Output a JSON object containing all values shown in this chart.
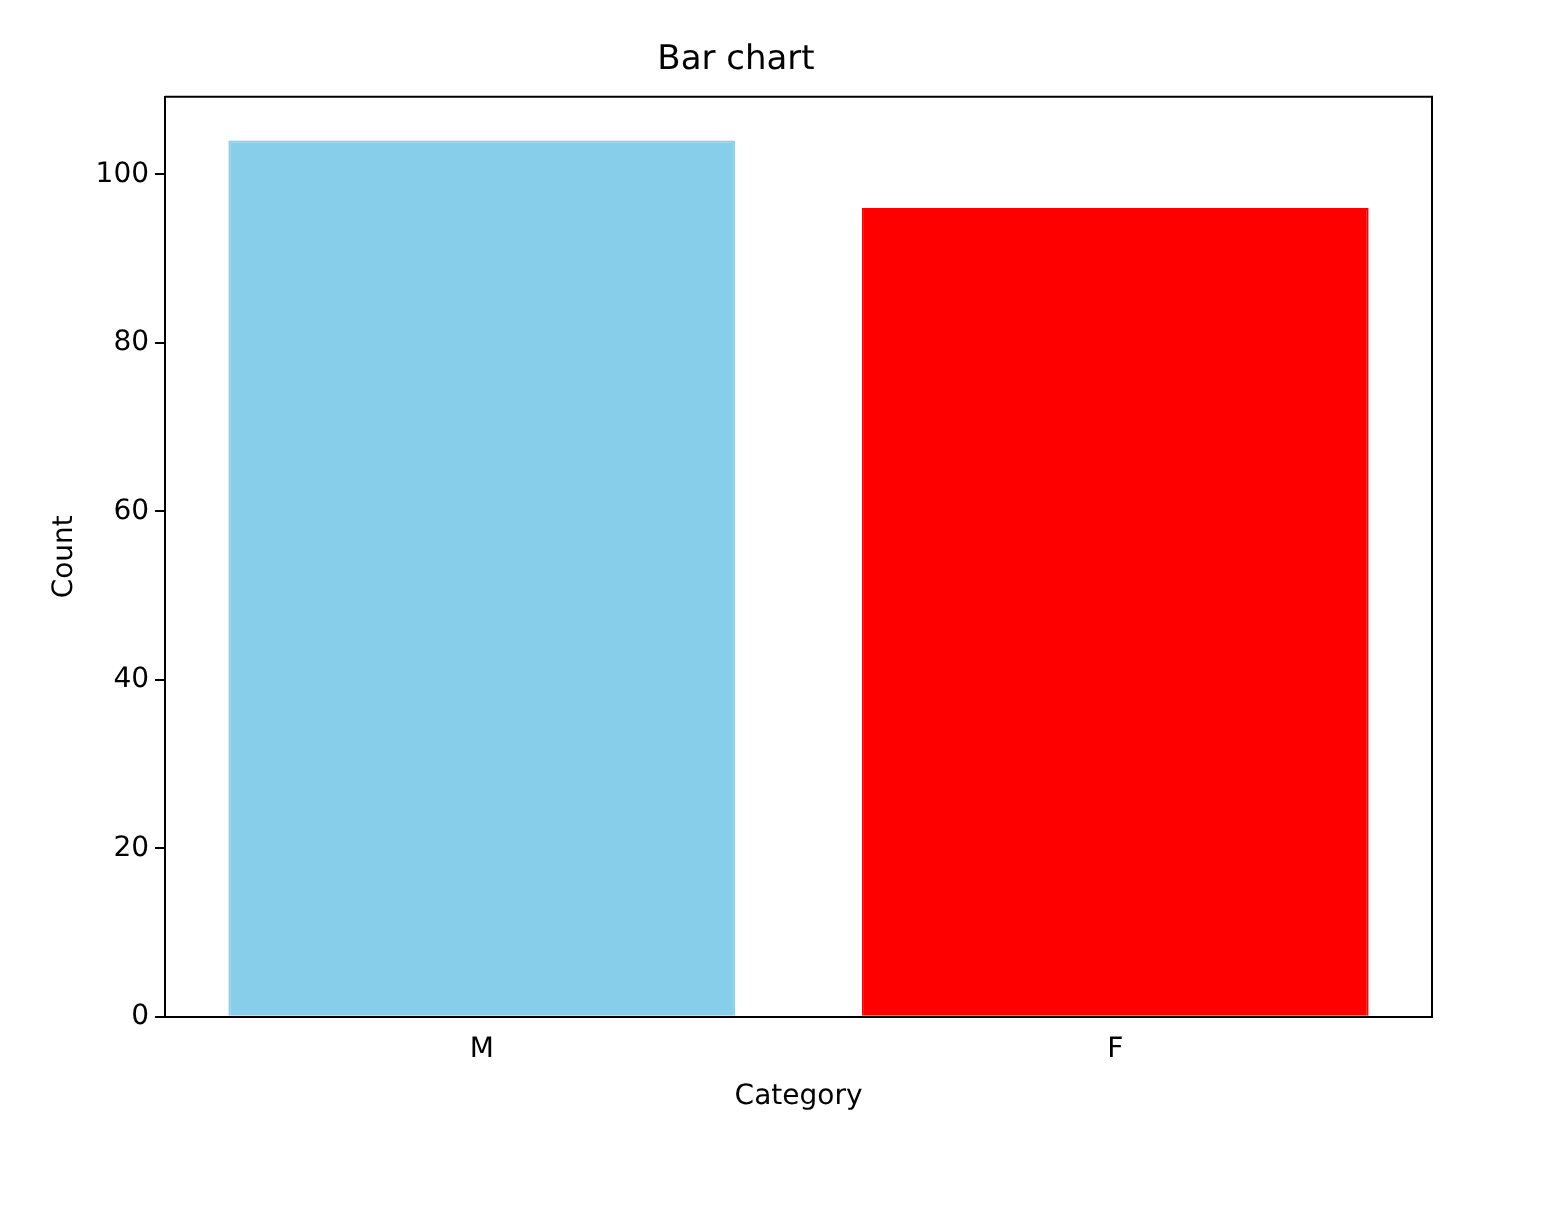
{
  "chart_data": {
    "type": "bar",
    "title": "Bar chart",
    "xlabel": "Category",
    "ylabel": "Count",
    "categories": [
      "M",
      "F"
    ],
    "values": [
      104,
      96
    ],
    "colors": [
      "#87ceeb",
      "#ff0000"
    ],
    "ylim": [
      0,
      109.2
    ],
    "yticks": [
      0,
      20,
      40,
      60,
      80,
      100
    ],
    "grid": false,
    "legend": false
  }
}
